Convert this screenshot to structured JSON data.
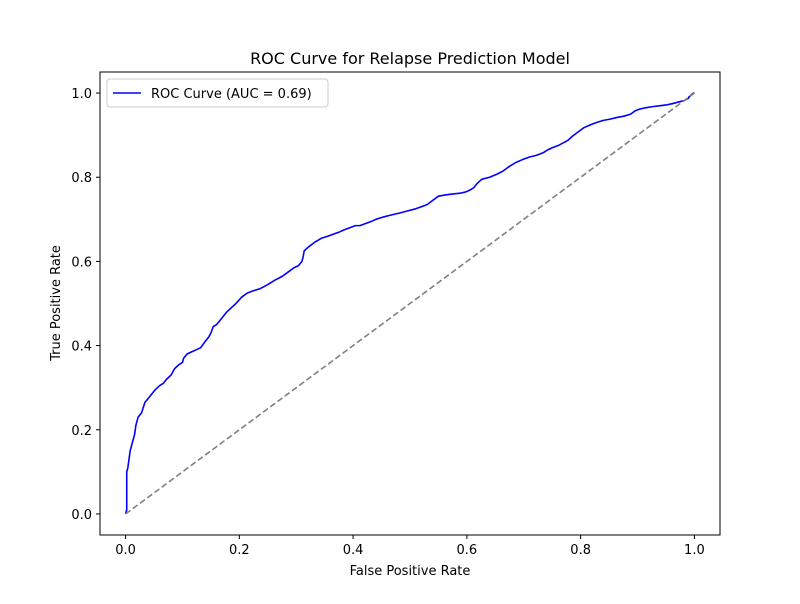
{
  "chart_data": {
    "type": "line",
    "title": "ROC Curve for Relapse Prediction Model",
    "xlabel": "False Positive Rate",
    "ylabel": "True Positive Rate",
    "xlim": [
      -0.045,
      1.045
    ],
    "ylim": [
      -0.05,
      1.05
    ],
    "xticks": [
      0.0,
      0.2,
      0.4,
      0.6,
      0.8,
      1.0
    ],
    "xtick_labels": [
      "0.0",
      "0.2",
      "0.4",
      "0.6",
      "0.8",
      "1.0"
    ],
    "yticks": [
      0.0,
      0.2,
      0.4,
      0.6,
      0.8,
      1.0
    ],
    "ytick_labels": [
      "0.0",
      "0.2",
      "0.4",
      "0.6",
      "0.8",
      "1.0"
    ],
    "grid": false,
    "legend": {
      "position": "upper-left",
      "entries": [
        {
          "label": "ROC Curve (AUC = 0.69)",
          "color": "#0000ff"
        }
      ]
    },
    "series": [
      {
        "name": "ROC Curve (AUC = 0.69)",
        "color": "#0000ff",
        "style": "solid",
        "x": [
          0.0,
          0.002,
          0.002,
          0.004,
          0.006,
          0.008,
          0.01,
          0.012,
          0.014,
          0.016,
          0.018,
          0.02,
          0.022,
          0.028,
          0.034,
          0.04,
          0.046,
          0.052,
          0.06,
          0.066,
          0.072,
          0.08,
          0.084,
          0.086,
          0.094,
          0.1,
          0.102,
          0.108,
          0.116,
          0.124,
          0.132,
          0.14,
          0.146,
          0.15,
          0.154,
          0.16,
          0.166,
          0.172,
          0.178,
          0.186,
          0.194,
          0.204,
          0.214,
          0.224,
          0.236,
          0.25,
          0.262,
          0.276,
          0.286,
          0.296,
          0.304,
          0.31,
          0.312,
          0.314,
          0.322,
          0.332,
          0.344,
          0.356,
          0.366,
          0.376,
          0.384,
          0.394,
          0.404,
          0.412,
          0.422,
          0.432,
          0.44,
          0.452,
          0.466,
          0.482,
          0.496,
          0.51,
          0.52,
          0.53,
          0.54,
          0.55,
          0.562,
          0.574,
          0.588,
          0.598,
          0.606,
          0.612,
          0.618,
          0.626,
          0.64,
          0.654,
          0.664,
          0.674,
          0.686,
          0.698,
          0.71,
          0.722,
          0.734,
          0.742,
          0.75,
          0.76,
          0.77,
          0.778,
          0.786,
          0.796,
          0.806,
          0.818,
          0.828,
          0.84,
          0.852,
          0.864,
          0.876,
          0.888,
          0.896,
          0.904,
          0.914,
          0.928,
          0.94,
          0.952,
          0.962,
          0.97,
          0.976,
          0.982,
          0.986,
          0.99,
          0.99,
          0.994,
          0.998,
          1.0
        ],
        "y": [
          0.0,
          0.01,
          0.1,
          0.11,
          0.13,
          0.15,
          0.16,
          0.17,
          0.18,
          0.19,
          0.21,
          0.22,
          0.23,
          0.24,
          0.265,
          0.275,
          0.285,
          0.295,
          0.305,
          0.31,
          0.32,
          0.33,
          0.34,
          0.345,
          0.355,
          0.36,
          0.37,
          0.38,
          0.385,
          0.39,
          0.395,
          0.41,
          0.42,
          0.43,
          0.445,
          0.45,
          0.46,
          0.47,
          0.48,
          0.49,
          0.5,
          0.515,
          0.525,
          0.53,
          0.535,
          0.545,
          0.555,
          0.565,
          0.575,
          0.585,
          0.59,
          0.6,
          0.61,
          0.625,
          0.635,
          0.645,
          0.655,
          0.66,
          0.665,
          0.67,
          0.675,
          0.68,
          0.685,
          0.685,
          0.69,
          0.695,
          0.7,
          0.705,
          0.71,
          0.715,
          0.72,
          0.725,
          0.73,
          0.735,
          0.745,
          0.755,
          0.758,
          0.76,
          0.762,
          0.765,
          0.77,
          0.775,
          0.785,
          0.795,
          0.8,
          0.808,
          0.815,
          0.825,
          0.835,
          0.842,
          0.848,
          0.852,
          0.858,
          0.865,
          0.87,
          0.875,
          0.882,
          0.888,
          0.898,
          0.908,
          0.918,
          0.925,
          0.93,
          0.935,
          0.938,
          0.942,
          0.945,
          0.95,
          0.958,
          0.962,
          0.965,
          0.968,
          0.97,
          0.972,
          0.975,
          0.978,
          0.98,
          0.982,
          0.985,
          0.988,
          0.99,
          0.995,
          1.0,
          1.0
        ]
      },
      {
        "name": "",
        "color": "#808080",
        "style": "dashed",
        "x": [
          0.0,
          1.0
        ],
        "y": [
          0.0,
          1.0
        ]
      }
    ]
  }
}
